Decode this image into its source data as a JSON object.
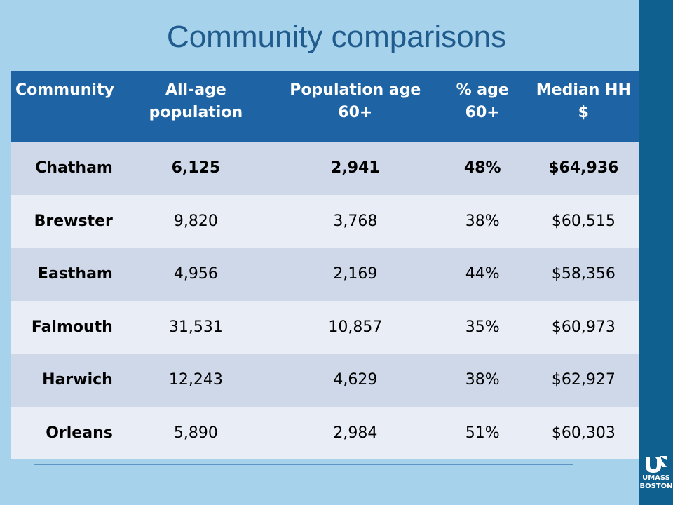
{
  "title": "Community comparisons",
  "table": {
    "headers": [
      "Community",
      "All-age population",
      "Population age 60+",
      "% age 60+",
      "Median HH $"
    ],
    "rows": [
      [
        "Chatham",
        "6,125",
        "2,941",
        "48%",
        "$64,936"
      ],
      [
        "Brewster",
        "9,820",
        "3,768",
        "38%",
        "$60,515"
      ],
      [
        "Eastham",
        "4,956",
        "2,169",
        "44%",
        "$58,356"
      ],
      [
        "Falmouth",
        "31,531",
        "10,857",
        "35%",
        "$60,973"
      ],
      [
        "Harwich",
        "12,243",
        "4,629",
        "38%",
        "$62,927"
      ],
      [
        "Orleans",
        "5,890",
        "2,984",
        "51%",
        "$60,303"
      ]
    ],
    "highlighted_row": "Chatham"
  },
  "logo": {
    "line1": "UMASS",
    "line2": "BOSTON",
    "icon": "umass-boston-logo-icon"
  },
  "colors": {
    "background": "#a7d2ec",
    "header": "#1e63a3",
    "band_dark": "#cfd8e8",
    "band_light": "#e9eef6",
    "title": "#1f5b8c",
    "side_bar": "#0f5f8f"
  }
}
